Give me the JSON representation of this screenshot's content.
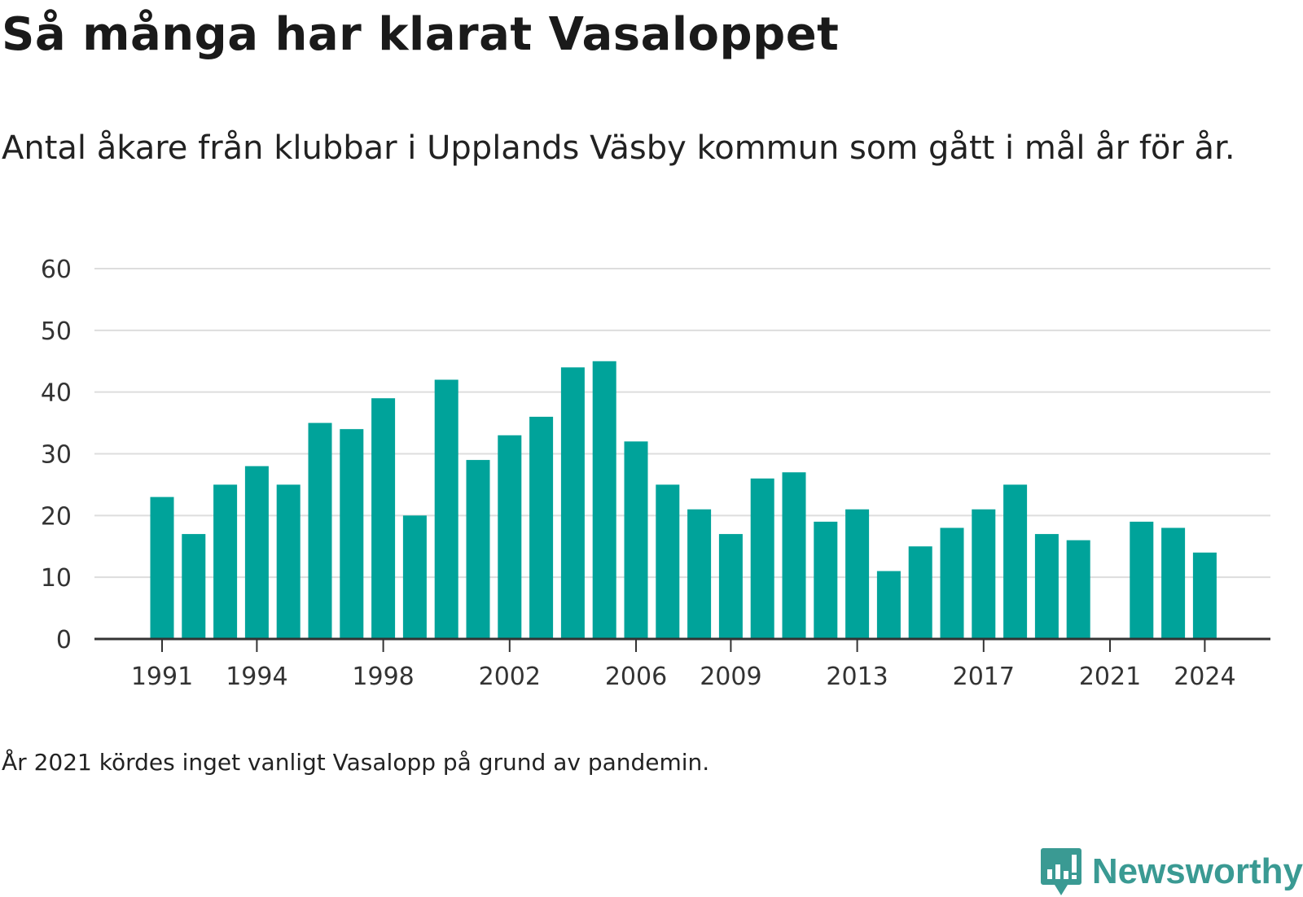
{
  "header": {
    "title": "Så många har klarat Vasaloppet",
    "subtitle": "Antal åkare från klubbar i Upplands Väsby kommun som gått i mål år för år."
  },
  "footer": {
    "note": "År 2021 kördes inget vanligt Vasalopp på grund av pandemin.",
    "brand": "Newsworthy"
  },
  "colors": {
    "bar": "#00a39a",
    "grid": "#dddddd",
    "axis": "#333333",
    "brand": "#3a9a93"
  },
  "chart_data": {
    "type": "bar",
    "x": [
      1991,
      1992,
      1993,
      1994,
      1995,
      1996,
      1997,
      1998,
      1999,
      2000,
      2001,
      2002,
      2003,
      2004,
      2005,
      2006,
      2007,
      2008,
      2009,
      2010,
      2011,
      2012,
      2013,
      2014,
      2015,
      2016,
      2017,
      2018,
      2019,
      2020,
      2021,
      2022,
      2023,
      2024
    ],
    "values": [
      23,
      17,
      25,
      28,
      25,
      35,
      34,
      39,
      20,
      42,
      29,
      33,
      36,
      44,
      45,
      32,
      25,
      21,
      17,
      26,
      27,
      19,
      21,
      11,
      15,
      18,
      21,
      25,
      17,
      16,
      null,
      19,
      18,
      14
    ],
    "x_ticks": [
      "1991",
      "1994",
      "1998",
      "2002",
      "2006",
      "2009",
      "2013",
      "2017",
      "2021",
      "2024"
    ],
    "y_ticks": [
      "0",
      "10",
      "20",
      "30",
      "40",
      "50",
      "60"
    ],
    "ylim": [
      0,
      60
    ],
    "grid": true,
    "legend": "none"
  }
}
